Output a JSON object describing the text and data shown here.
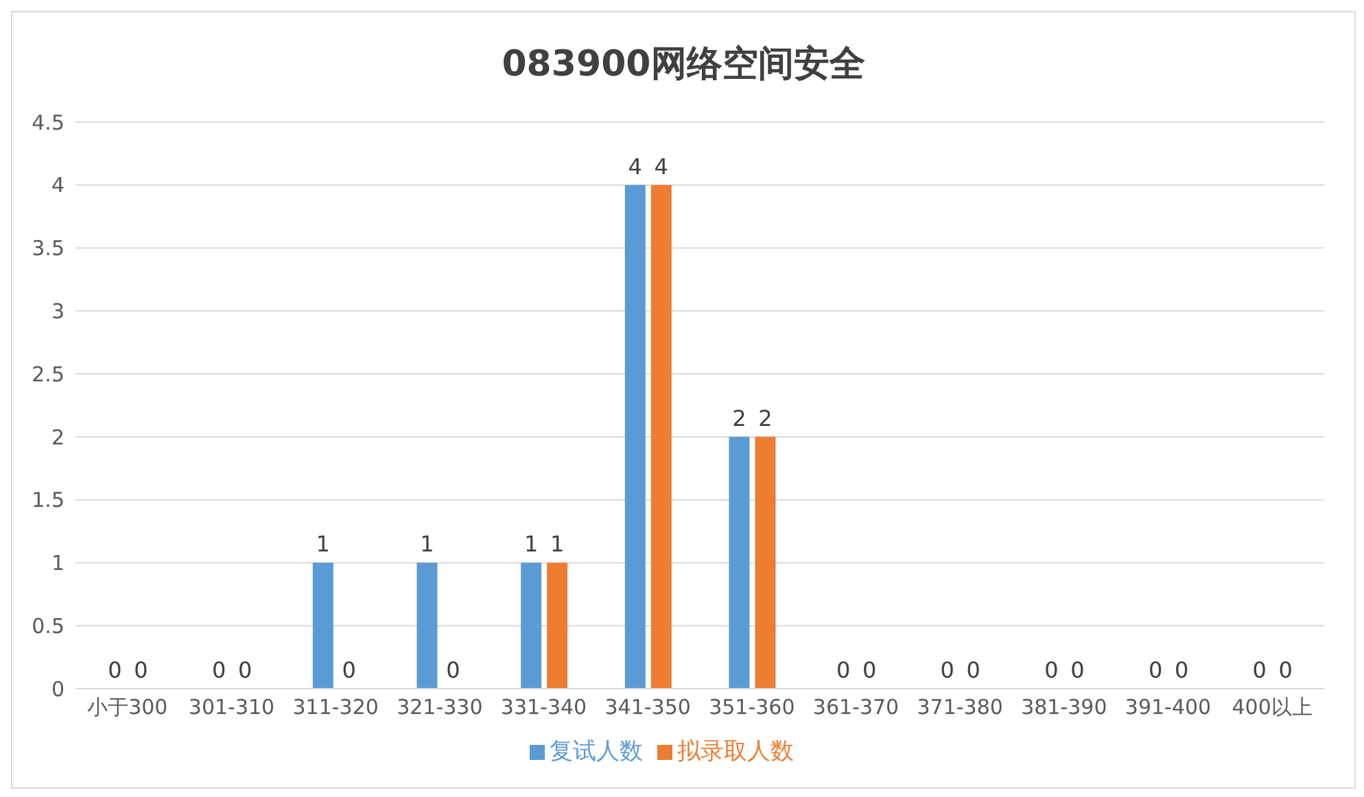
{
  "chart_data": {
    "type": "bar",
    "title": "083900网络空间安全",
    "categories": [
      "小于300",
      "301-310",
      "311-320",
      "321-330",
      "331-340",
      "341-350",
      "351-360",
      "361-370",
      "371-380",
      "381-390",
      "391-400",
      "400以上"
    ],
    "series": [
      {
        "name": "复试人数",
        "color": "#5b9bd5",
        "values": [
          0,
          0,
          1,
          1,
          1,
          4,
          2,
          0,
          0,
          0,
          0,
          0
        ]
      },
      {
        "name": "拟录取人数",
        "color": "#ed7d31",
        "values": [
          0,
          0,
          0,
          0,
          1,
          4,
          2,
          0,
          0,
          0,
          0,
          0
        ]
      }
    ],
    "ylim": [
      0,
      4.5
    ],
    "yticks": [
      0,
      0.5,
      1,
      1.5,
      2,
      2.5,
      3,
      3.5,
      4,
      4.5
    ],
    "grid": "y",
    "legend": "bottom",
    "data_labels": true
  }
}
